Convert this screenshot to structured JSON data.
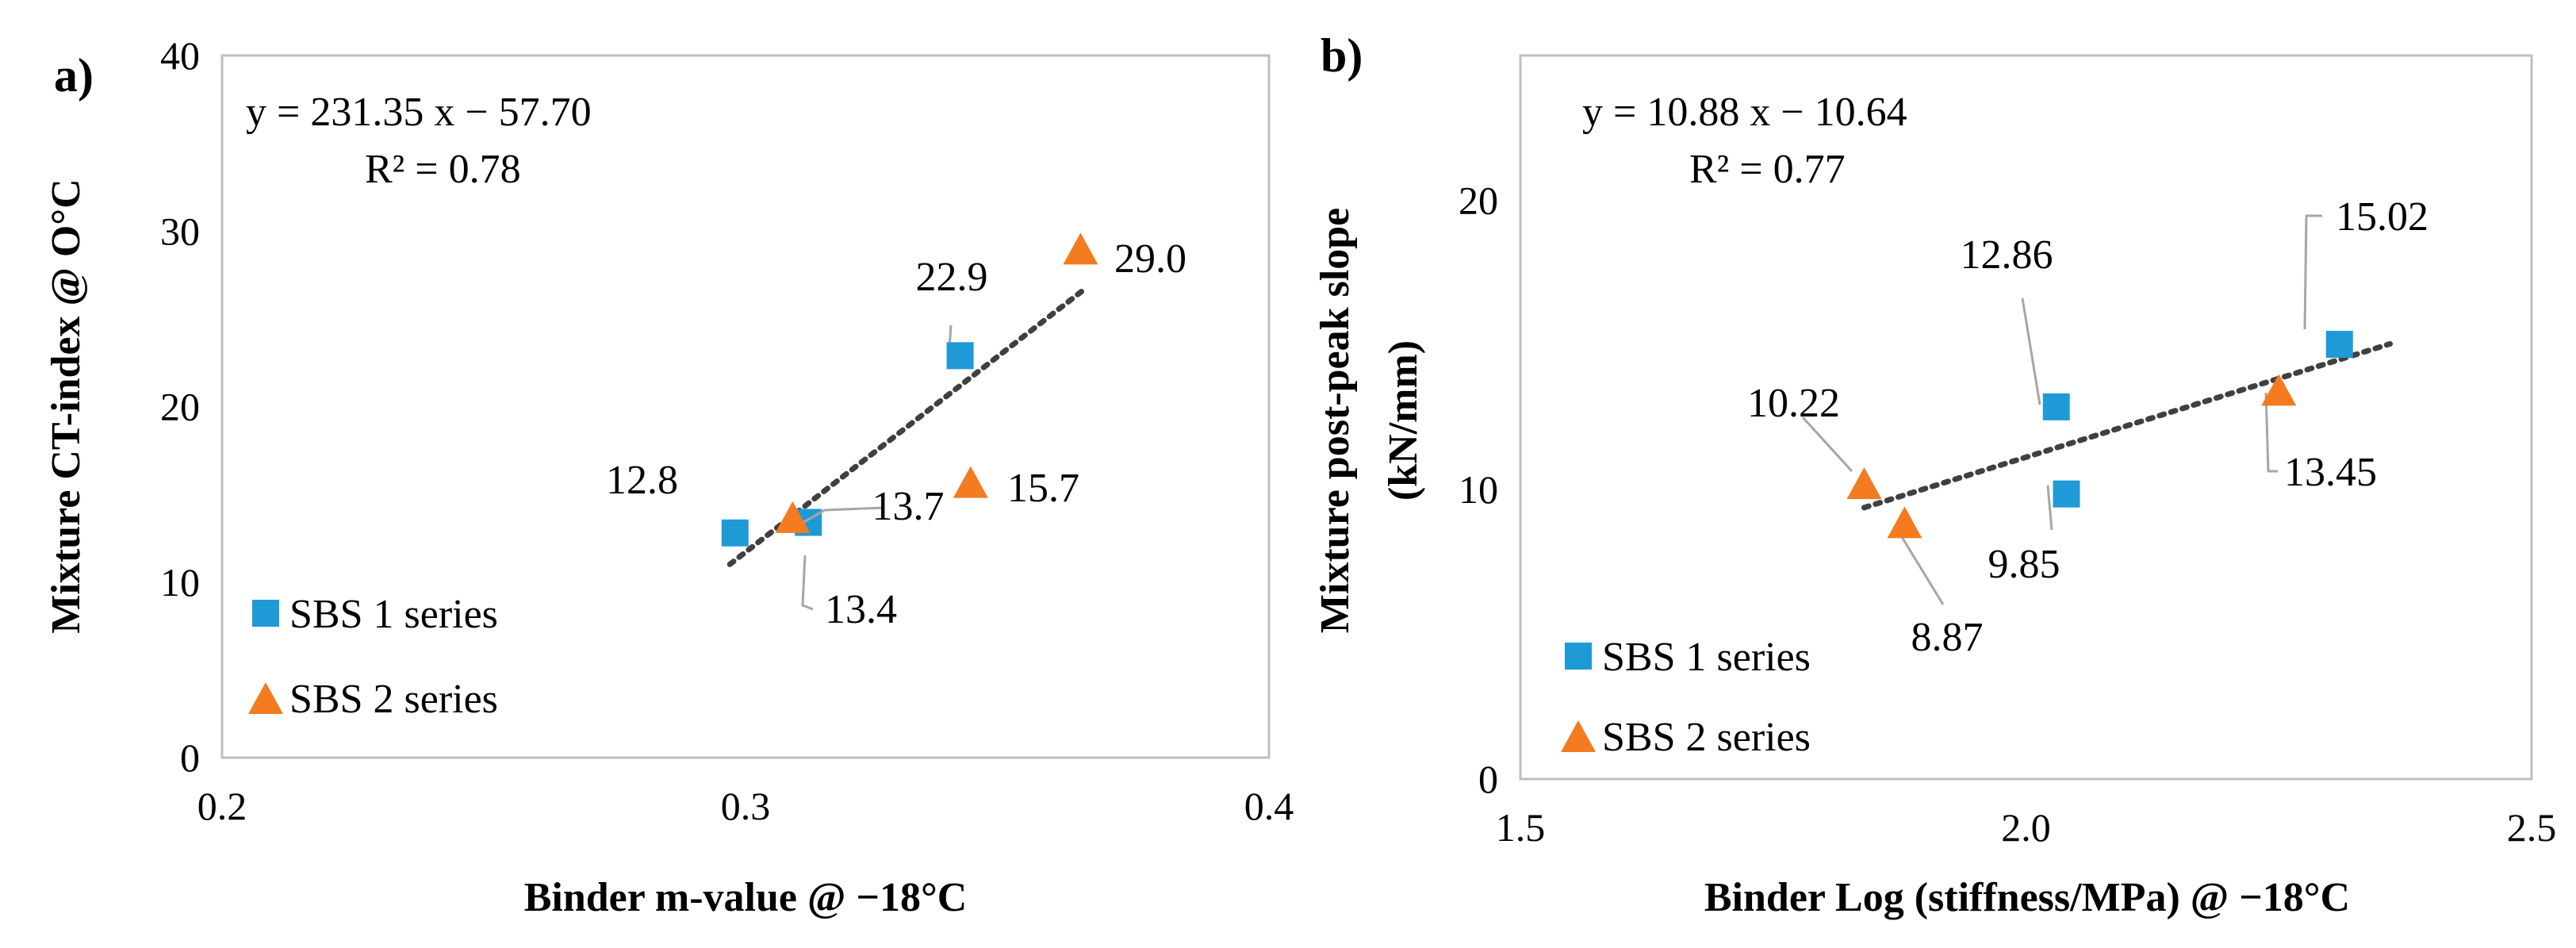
{
  "colors": {
    "sbs1": "#1f9ad6",
    "sbs2": "#f47b20",
    "trend": "#404040",
    "frame": "#bfbfbf",
    "leader": "#a6a6a6"
  },
  "chart_data": [
    {
      "type": "scatter",
      "panel_label": "a)",
      "xlabel": "Binder m-value  @ −18°C",
      "ylabel": "Mixture CT-index @ O°C",
      "ylabel_lines": [
        "Mixture CT-index @ O°C"
      ],
      "xlim": [
        0.2,
        0.4
      ],
      "ylim": [
        0,
        40
      ],
      "x_ticks": [
        0.2,
        0.3,
        0.4
      ],
      "x_tick_labels": [
        "0.2",
        "0.3",
        "0.4"
      ],
      "y_ticks": [
        0,
        10,
        20,
        30,
        40
      ],
      "y_tick_labels": [
        "0",
        "10",
        "20",
        "30",
        "40"
      ],
      "equation": "y = 231.35 x − 57.70",
      "r2": "R² = 0.78",
      "trendline": {
        "slope": 231.35,
        "intercept": -57.7,
        "x_range": [
          0.297,
          0.365
        ]
      },
      "legend": [
        "SBS 1 series",
        "SBS 2 series"
      ],
      "series": [
        {
          "name": "SBS 1 series",
          "marker": "square",
          "points": [
            {
              "x": 0.298,
              "y": 12.8,
              "label": "12.8"
            },
            {
              "x": 0.312,
              "y": 13.4,
              "label": "13.4"
            },
            {
              "x": 0.341,
              "y": 22.9,
              "label": "22.9"
            }
          ]
        },
        {
          "name": "SBS 2 series",
          "marker": "triangle",
          "points": [
            {
              "x": 0.309,
              "y": 13.7,
              "label": "13.7"
            },
            {
              "x": 0.343,
              "y": 15.7,
              "label": "15.7"
            },
            {
              "x": 0.364,
              "y": 29.0,
              "label": "29.0"
            }
          ]
        }
      ]
    },
    {
      "type": "scatter",
      "panel_label": "b)",
      "xlabel": "Binder Log (stiffness/MPa) @ −18°C",
      "ylabel": "Mixture post-peak slope (kN/mm)",
      "ylabel_lines": [
        "Mixture post-peak slope",
        "(kN/mm)"
      ],
      "xlim": [
        1.5,
        2.5
      ],
      "ylim": [
        0,
        25
      ],
      "x_ticks": [
        1.5,
        2.0,
        2.5
      ],
      "x_tick_labels": [
        "1.5",
        "2.0",
        "2.5"
      ],
      "y_ticks": [
        0,
        10,
        20
      ],
      "y_tick_labels": [
        "0",
        "10",
        "20"
      ],
      "equation": "y = 10.88 x − 10.64",
      "r2": "R² = 0.77",
      "trendline": {
        "slope": 10.88,
        "intercept": -10.64,
        "x_range": [
          1.84,
          2.36
        ]
      },
      "legend": [
        "SBS 1 series",
        "SBS 2 series"
      ],
      "series": [
        {
          "name": "SBS 1 series",
          "marker": "square",
          "points": [
            {
              "x": 2.03,
              "y": 12.86,
              "label": "12.86"
            },
            {
              "x": 2.04,
              "y": 9.85,
              "label": "9.85"
            },
            {
              "x": 2.31,
              "y": 15.02,
              "label": "15.02"
            }
          ]
        },
        {
          "name": "SBS 2 series",
          "marker": "triangle",
          "points": [
            {
              "x": 1.84,
              "y": 10.22,
              "label": "10.22"
            },
            {
              "x": 1.88,
              "y": 8.87,
              "label": "8.87"
            },
            {
              "x": 2.25,
              "y": 13.45,
              "label": "13.45"
            }
          ]
        }
      ]
    }
  ]
}
